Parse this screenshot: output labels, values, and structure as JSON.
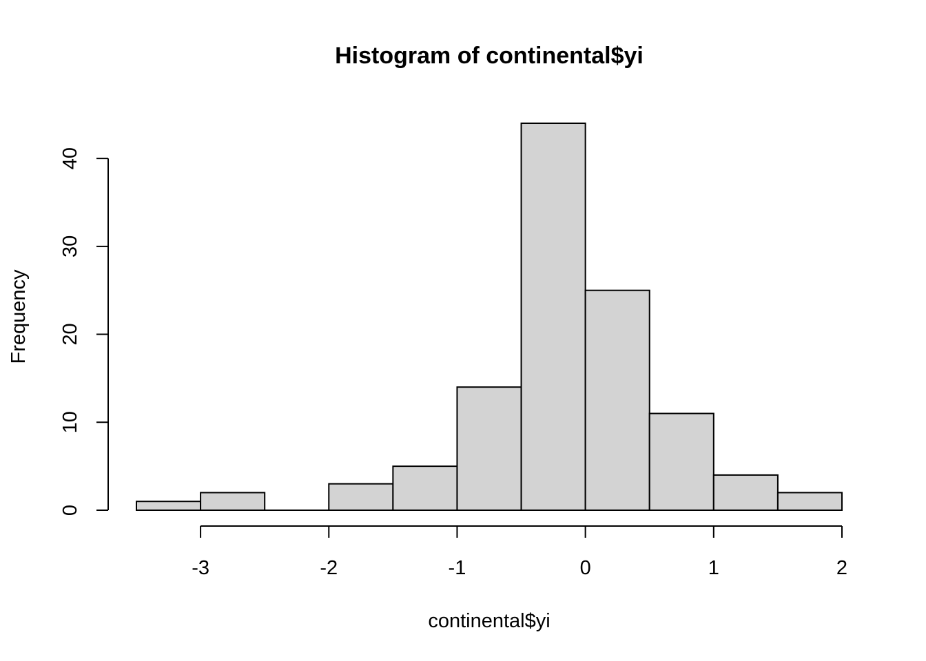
{
  "chart_data": {
    "type": "bar",
    "title": "Histogram of continental$yi",
    "xlabel": "continental$yi",
    "ylabel": "Frequency",
    "bin_edges": [
      -3.5,
      -3.0,
      -2.5,
      -2.0,
      -1.5,
      -1.0,
      -0.5,
      0.0,
      0.5,
      1.0,
      1.5,
      2.0
    ],
    "values": [
      1,
      2,
      0,
      3,
      5,
      14,
      44,
      25,
      11,
      4,
      2
    ],
    "xlim": [
      -3.5,
      2
    ],
    "ylim": [
      0,
      44
    ],
    "x_ticks": [
      -3,
      -2,
      -1,
      0,
      1,
      2
    ],
    "x_tick_labels": [
      "-3",
      "-2",
      "-1",
      "0",
      "1",
      "2"
    ],
    "y_ticks": [
      0,
      10,
      20,
      30,
      40
    ],
    "y_tick_labels": [
      "0",
      "10",
      "20",
      "30",
      "40"
    ],
    "bar_color": "#d3d3d3",
    "grid": false,
    "legend": "none"
  }
}
